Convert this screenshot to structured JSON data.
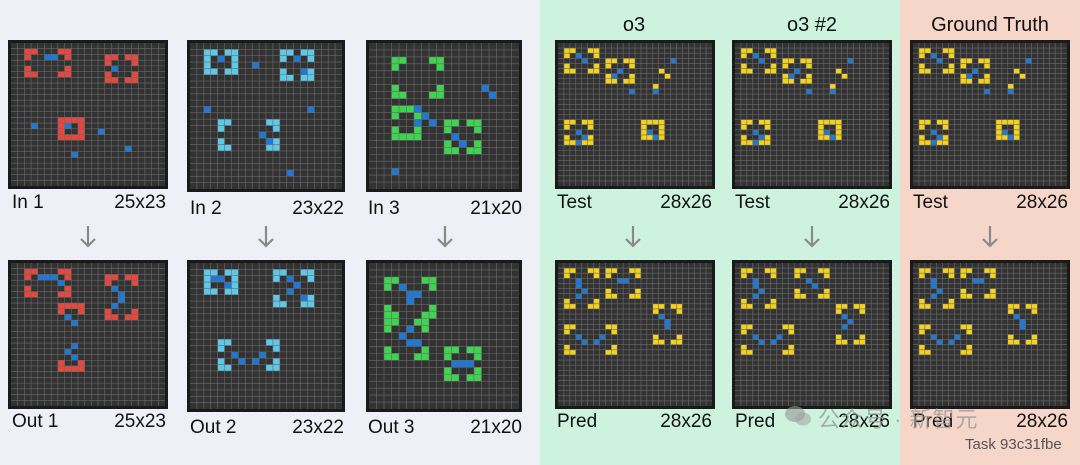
{
  "titles": {
    "o3": "o3",
    "o3b": "o3 #2",
    "gt": "Ground Truth"
  },
  "examples": [
    {
      "in_label": "In 1",
      "in_size": "25x23",
      "out_label": "Out 1",
      "out_size": "25x23",
      "accent": "#e8473d"
    },
    {
      "in_label": "In 2",
      "in_size": "23x22",
      "out_label": "Out 2",
      "out_size": "23x22",
      "accent": "#5ec8e8"
    },
    {
      "in_label": "In 3",
      "in_size": "21x20",
      "out_label": "Out 3",
      "out_size": "21x20",
      "accent": "#3ed450"
    }
  ],
  "test_cols": [
    {
      "top_label": "Test",
      "top_size": "28x26",
      "bottom_label": "Pred",
      "bottom_size": "28x26"
    },
    {
      "top_label": "Test",
      "top_size": "28x26",
      "bottom_label": "Pred",
      "bottom_size": "28x26"
    },
    {
      "top_label": "Test",
      "top_size": "28x26",
      "bottom_label": "Pred",
      "bottom_size": "28x26"
    }
  ],
  "colors": {
    "grid_bg": "#323232",
    "grid_line": "#6a6a6a",
    "blue": "#1e78d6",
    "yellow": "#f5d21a"
  },
  "watermark": "公众号 · 新智元",
  "task_id": "Task 93c31fbe",
  "icons": {
    "arrow": "arrow-down-icon",
    "wechat": "wechat-icon"
  }
}
